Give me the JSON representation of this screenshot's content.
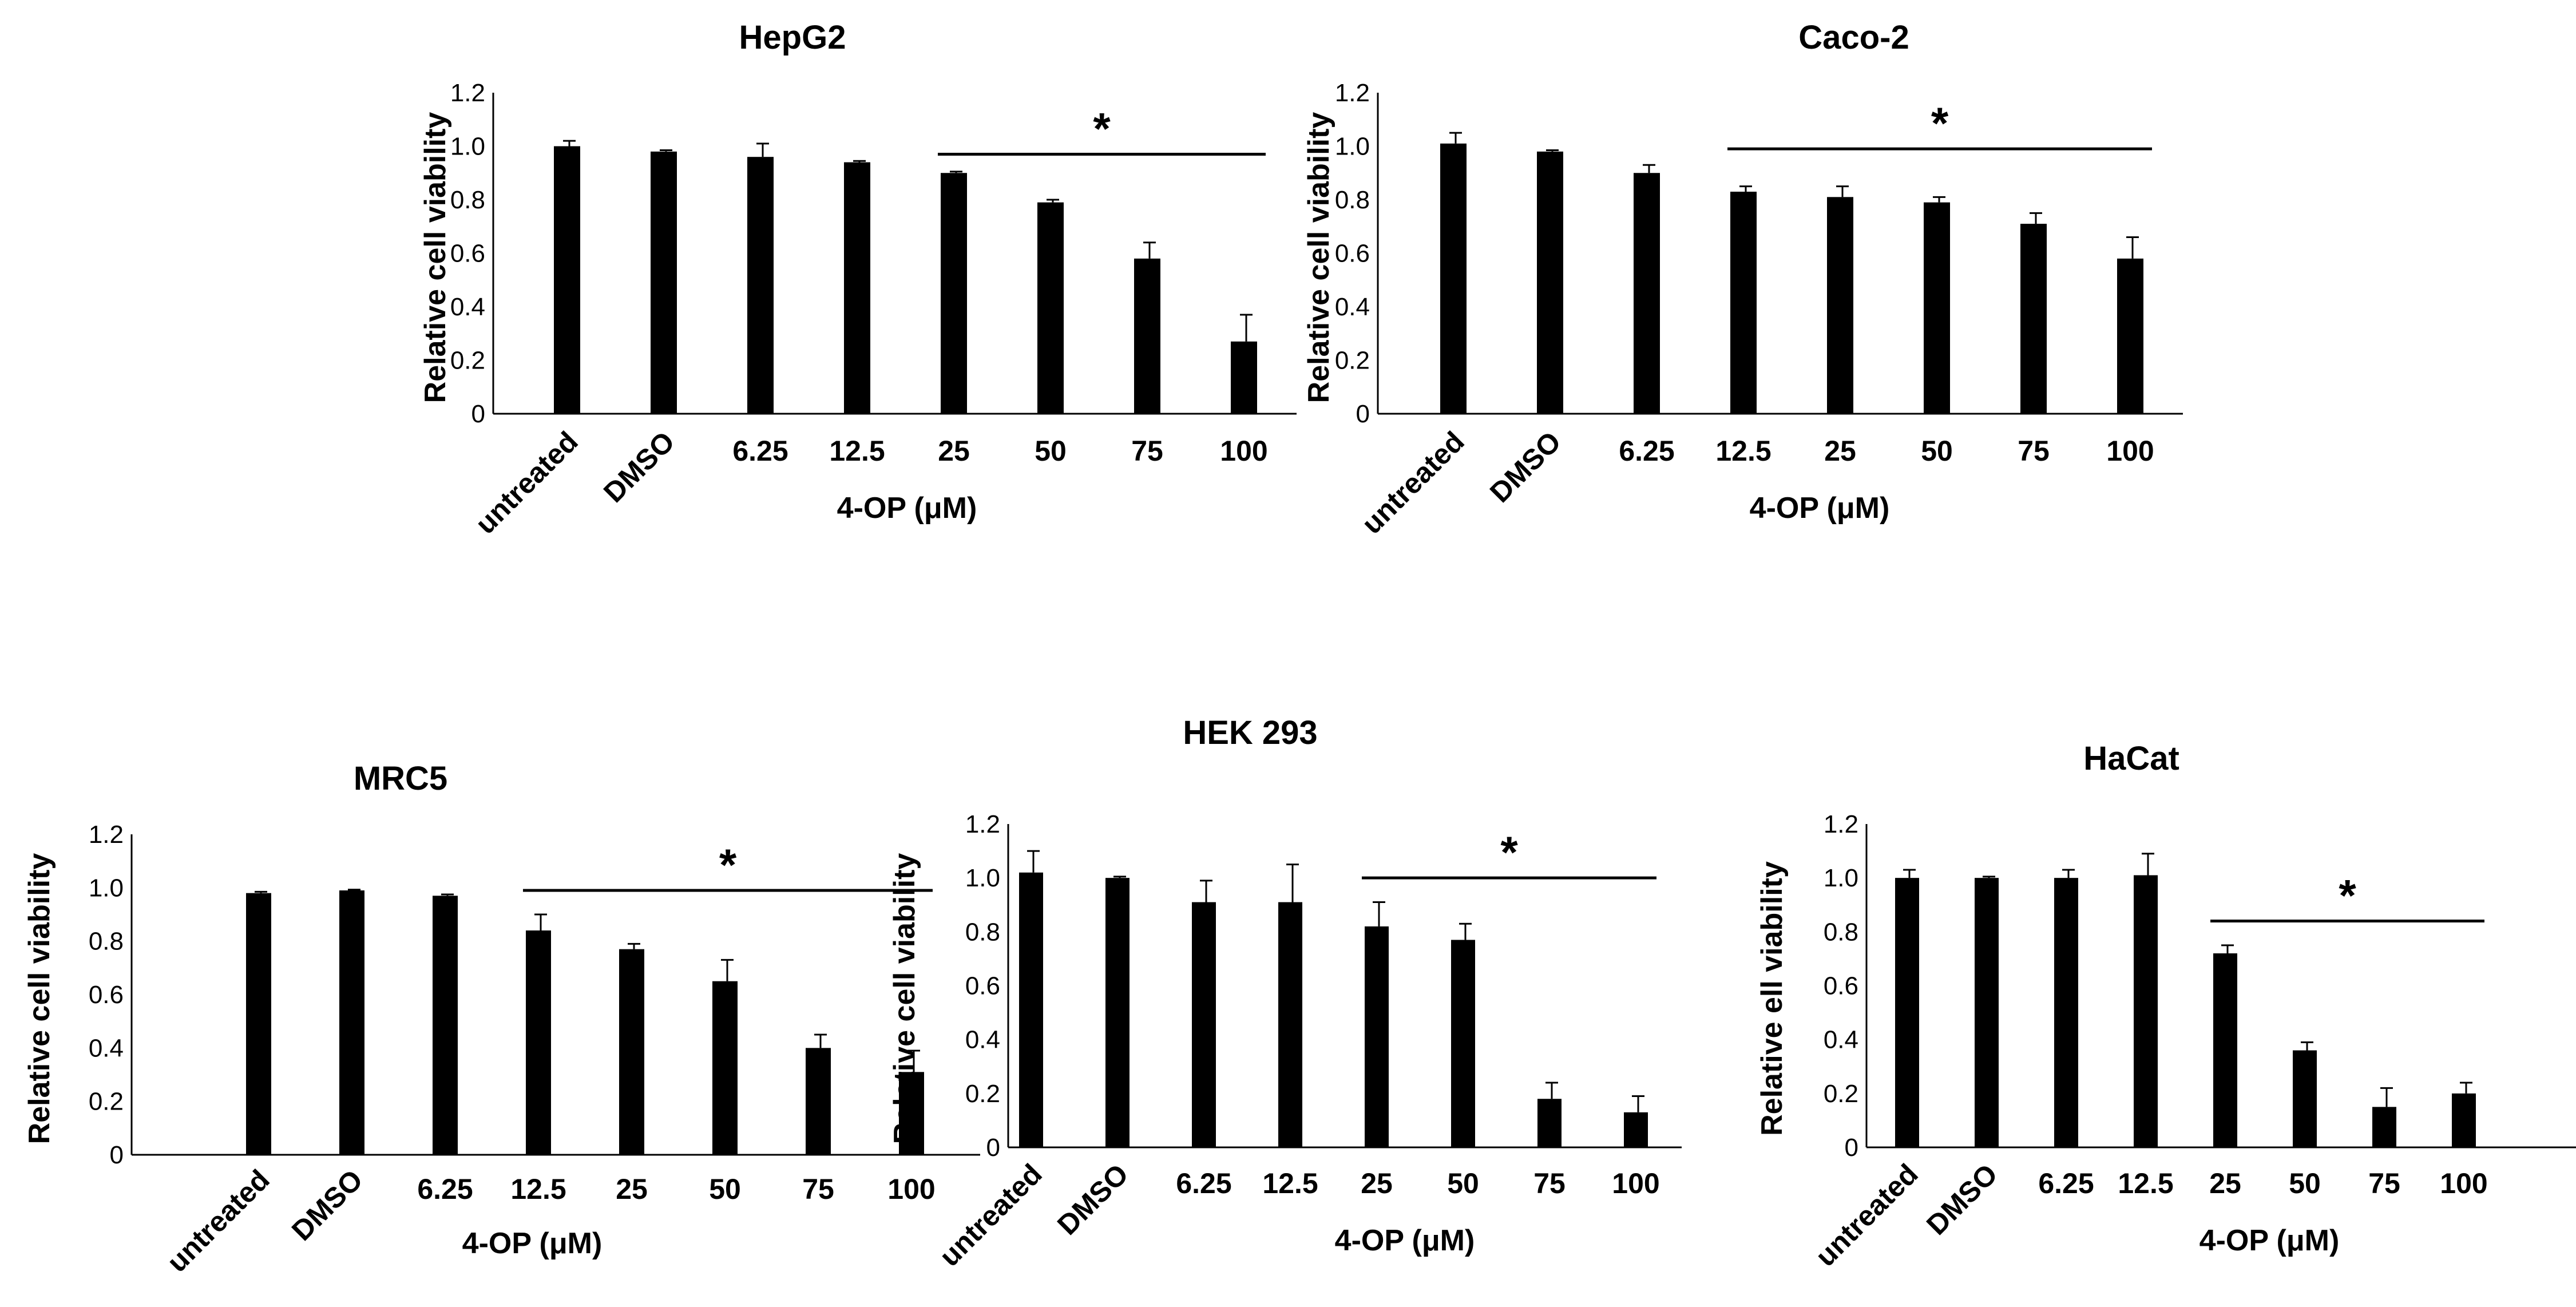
{
  "chart_data": [
    {
      "type": "bar",
      "title": "HepG2",
      "ylabel": "Relative cell viability",
      "xlabel": "4-OP (μM)",
      "ylim": [
        0,
        1.2
      ],
      "yticks": [
        "0",
        "0.2",
        "0.4",
        "0.6",
        "0.8",
        "1.0",
        "1.2"
      ],
      "categories": [
        "untreated",
        "DMSO",
        "6.25",
        "12.5",
        "25",
        "50",
        "75",
        "100"
      ],
      "values": [
        1.0,
        0.98,
        0.96,
        0.94,
        0.9,
        0.79,
        0.58,
        0.27
      ],
      "errors": [
        0.02,
        0.005,
        0.05,
        0.005,
        0.005,
        0.01,
        0.06,
        0.1
      ],
      "significance": {
        "marker": "*",
        "from": "25",
        "to": "100",
        "y": 0.97
      }
    },
    {
      "type": "bar",
      "title": "Caco-2",
      "ylabel": "Relative cell viability",
      "xlabel": "4-OP (μM)",
      "ylim": [
        0,
        1.2
      ],
      "yticks": [
        "0",
        "0.2",
        "0.4",
        "0.6",
        "0.8",
        "1.0",
        "1.2"
      ],
      "categories": [
        "untreated",
        "DMSO",
        "6.25",
        "12.5",
        "25",
        "50",
        "75",
        "100"
      ],
      "values": [
        1.01,
        0.98,
        0.9,
        0.83,
        0.81,
        0.79,
        0.71,
        0.58
      ],
      "errors": [
        0.04,
        0.005,
        0.03,
        0.02,
        0.04,
        0.02,
        0.04,
        0.08
      ],
      "significance": {
        "marker": "*",
        "from": "12.5",
        "to": "100",
        "y": 0.99
      }
    },
    {
      "type": "bar",
      "title": "MRC5",
      "ylabel": "Relative  cell viability",
      "xlabel": "4-OP (μM)",
      "ylim": [
        0,
        1.2
      ],
      "yticks": [
        "0",
        "0.2",
        "0.4",
        "0.6",
        "0.8",
        "1.0",
        "1.2"
      ],
      "categories": [
        "untreated",
        "DMSO",
        "6.25",
        "12.5",
        "25",
        "50",
        "75",
        "100"
      ],
      "values": [
        0.98,
        0.99,
        0.97,
        0.84,
        0.77,
        0.65,
        0.4,
        0.31
      ],
      "errors": [
        0.005,
        0.003,
        0.005,
        0.06,
        0.02,
        0.08,
        0.05,
        0.08
      ],
      "significance": {
        "marker": "*",
        "from": "12.5",
        "to": "100",
        "y": 0.99
      }
    },
    {
      "type": "bar",
      "title": "HEK 293",
      "ylabel": "Relative cell viability",
      "xlabel": "4-OP (μM)",
      "ylim": [
        0,
        1.2
      ],
      "yticks": [
        "0",
        "0.2",
        "0.4",
        "0.6",
        "0.8",
        "1.0",
        "1.2"
      ],
      "categories": [
        "untreated",
        "DMSO",
        "6.25",
        "12.5",
        "25",
        "50",
        "75",
        "100"
      ],
      "values": [
        1.02,
        1.0,
        0.91,
        0.91,
        0.82,
        0.77,
        0.18,
        0.13
      ],
      "errors": [
        0.08,
        0.005,
        0.08,
        0.14,
        0.09,
        0.06,
        0.06,
        0.06
      ],
      "significance": {
        "marker": "*",
        "from": "25",
        "to": "100",
        "y": 1.0
      }
    },
    {
      "type": "bar",
      "title": "HaCat",
      "ylabel": "Relative ell viability",
      "xlabel": "4-OP (μM)",
      "ylim": [
        0,
        1.2
      ],
      "yticks": [
        "0",
        "0.2",
        "0.4",
        "0.6",
        "0.8",
        "1.0",
        "1.2"
      ],
      "categories": [
        "untreated",
        "DMSO",
        "6.25",
        "12.5",
        "25",
        "50",
        "75",
        "100"
      ],
      "values": [
        1.0,
        1.0,
        1.0,
        1.01,
        0.72,
        0.36,
        0.15,
        0.2
      ],
      "errors": [
        0.03,
        0.005,
        0.03,
        0.08,
        0.03,
        0.03,
        0.07,
        0.04
      ],
      "significance": {
        "marker": "*",
        "from": "25",
        "to": "100",
        "y": 0.84
      }
    }
  ]
}
